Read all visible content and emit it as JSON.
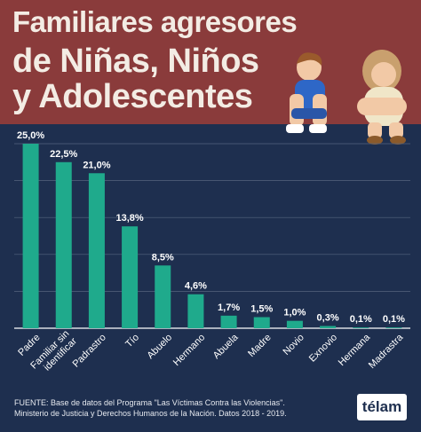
{
  "header": {
    "title_line1": "Familiares agresores",
    "title_line2": "de Niñas, Niños",
    "title_line3": "y Adolescentes"
  },
  "chart_data": {
    "type": "bar",
    "categories": [
      "Padre",
      "Familiar sin identificar",
      "Padrastro",
      "Tío",
      "Abuelo",
      "Hermano",
      "Abuela",
      "Madre",
      "Novio",
      "Exnovio",
      "Hermana",
      "Madrastra"
    ],
    "values": [
      25.0,
      22.5,
      21.0,
      13.8,
      8.5,
      4.6,
      1.7,
      1.5,
      1.0,
      0.3,
      0.1,
      0.1
    ],
    "data_labels": [
      "25,0%",
      "22,5%",
      "21,0%",
      "13,8%",
      "8,5%",
      "4,6%",
      "1,7%",
      "1,5%",
      "1,0%",
      "0,3%",
      "0,1%",
      "0,1%"
    ],
    "title": "Familiares agresores de Niñas, Niños y Adolescentes",
    "xlabel": "",
    "ylabel": "",
    "ylim": [
      0,
      25
    ],
    "grid": true,
    "legend": "none",
    "bar_color": "#1faa8c"
  },
  "footer": {
    "source_line1": "FUENTE: Base de datos del Programa \"Las Víctimas Contra las Violencias\".",
    "source_line2": "Ministerio de Justicia y Derechos Humanos de la Nación. Datos 2018 - 2019."
  },
  "logo": {
    "text": "télam"
  },
  "colors": {
    "background": "#1e2f4f",
    "header": "#8a3b3b",
    "bar": "#1faa8c",
    "grid": "#55647f",
    "text": "#ffffff"
  }
}
